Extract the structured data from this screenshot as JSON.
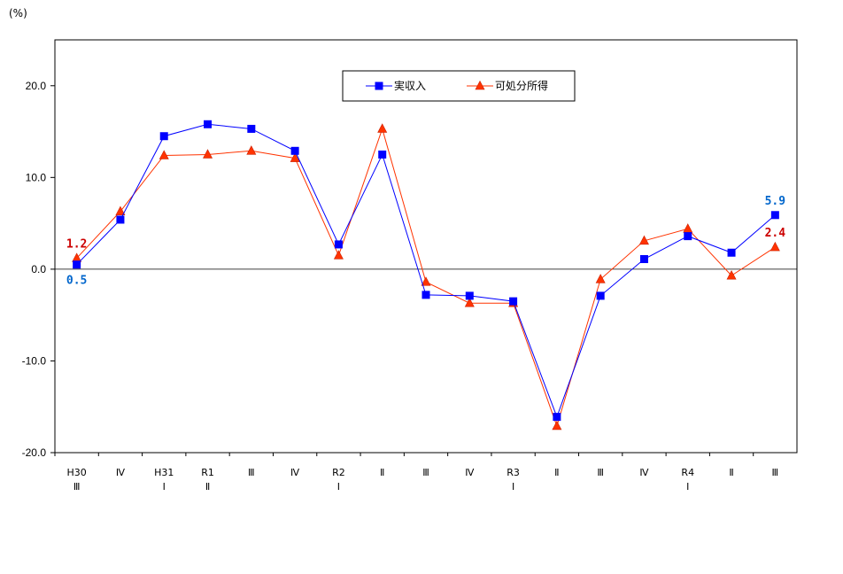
{
  "chart_data": {
    "type": "line",
    "unit_label": "(%)",
    "ylim": [
      -20,
      25
    ],
    "yticks": [
      20.0,
      10.0,
      0.0,
      -10.0,
      -20.0
    ],
    "ytick_labels": [
      "20.0",
      "10.0",
      "0.0",
      "-10.0",
      "-20.0"
    ],
    "categories": [
      [
        "H30",
        "Ⅲ"
      ],
      [
        "Ⅳ"
      ],
      [
        "H31",
        "Ⅰ"
      ],
      [
        "R1",
        "Ⅱ"
      ],
      [
        "Ⅲ"
      ],
      [
        "Ⅳ"
      ],
      [
        "R2",
        "Ⅰ"
      ],
      [
        "Ⅱ"
      ],
      [
        "Ⅲ"
      ],
      [
        "Ⅳ"
      ],
      [
        "R3",
        "Ⅰ"
      ],
      [
        "Ⅱ"
      ],
      [
        "Ⅲ"
      ],
      [
        "Ⅳ"
      ],
      [
        "R4",
        "Ⅰ"
      ],
      [
        "Ⅱ"
      ],
      [
        "Ⅲ"
      ]
    ],
    "series": [
      {
        "name": "実収入",
        "color": "#0000ff",
        "marker": "square",
        "values": [
          0.5,
          5.4,
          14.5,
          15.8,
          15.3,
          12.9,
          2.7,
          12.5,
          -2.8,
          -2.9,
          -3.5,
          -16.1,
          -2.9,
          1.1,
          3.6,
          1.8,
          5.9
        ]
      },
      {
        "name": "可処分所得",
        "color": "#ff3300",
        "marker": "triangle",
        "values": [
          1.2,
          6.3,
          12.4,
          12.5,
          12.9,
          12.1,
          1.5,
          15.3,
          -1.4,
          -3.7,
          -3.7,
          -17.1,
          -1.1,
          3.1,
          4.4,
          -0.7,
          2.4
        ]
      }
    ],
    "annotations": [
      {
        "series": 0,
        "index": 0,
        "text": "0.5",
        "color": "#0066cc",
        "pos": "below"
      },
      {
        "series": 1,
        "index": 0,
        "text": "1.2",
        "color": "#cc0000",
        "pos": "above"
      },
      {
        "series": 0,
        "index": 16,
        "text": "5.9",
        "color": "#0066cc",
        "pos": "above"
      },
      {
        "series": 1,
        "index": 16,
        "text": "2.4",
        "color": "#cc0000",
        "pos": "above"
      }
    ],
    "legend_position": "top-center",
    "grid": false
  }
}
